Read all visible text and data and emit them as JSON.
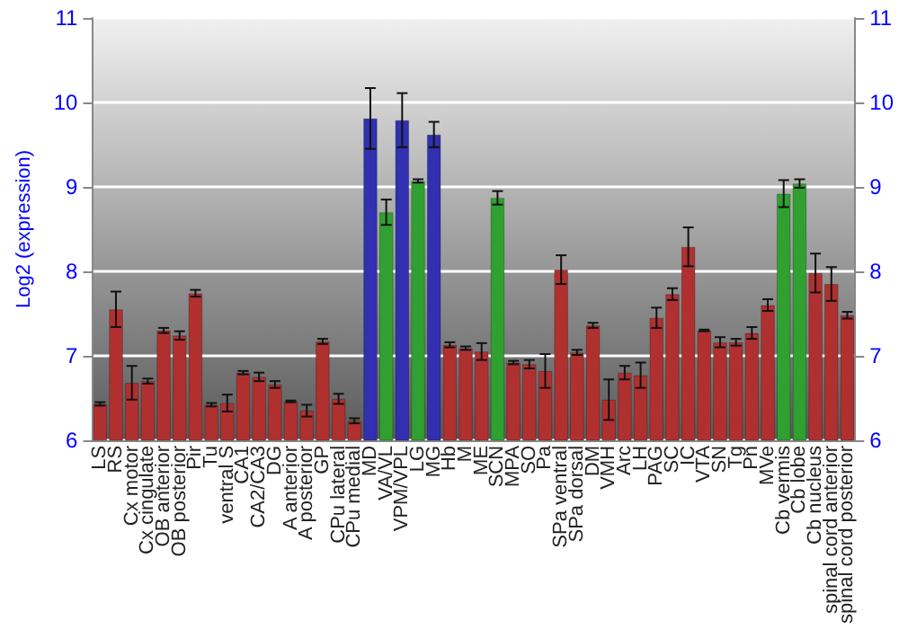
{
  "chart_data": {
    "type": "bar",
    "ylabel": "Log2 (expression)",
    "categories": [
      "LS",
      "RS",
      "Cx motor",
      "Cx cingulate",
      "OB anterior",
      "OB posterior",
      "Pir",
      "Tu",
      "ventral S",
      "CA1",
      "CA2/CA3",
      "DG",
      "A anterior",
      "A posterior",
      "GP",
      "CPu lateral",
      "CPu medial",
      "MD",
      "VA/VL",
      "VPM/VPL",
      "LG",
      "MG",
      "Hb",
      "M",
      "ME",
      "SCN",
      "MPA",
      "SO",
      "Pa",
      "SPa ventral",
      "SPa dorsal",
      "DM",
      "VMH",
      "Arc",
      "LH",
      "PAG",
      "SC",
      "IC",
      "VTA",
      "SN",
      "Tg",
      "Pn",
      "MVe",
      "Cb vermis",
      "Cb lobe",
      "Cb nucleus",
      "spinal cord anterior",
      "spinal cord posterior"
    ],
    "values": [
      6.43,
      7.55,
      6.68,
      6.7,
      7.3,
      7.24,
      7.74,
      6.42,
      6.44,
      6.8,
      6.75,
      6.66,
      6.46,
      6.35,
      7.17,
      6.49,
      6.23,
      9.81,
      8.7,
      9.79,
      9.07,
      9.62,
      7.13,
      7.09,
      7.05,
      8.87,
      6.92,
      6.9,
      6.82,
      8.02,
      7.04,
      7.36,
      6.48,
      6.8,
      6.77,
      7.45,
      7.73,
      8.29,
      7.3,
      7.16,
      7.16,
      7.27,
      7.6,
      8.92,
      9.04,
      7.98,
      7.85,
      7.48
    ],
    "errors": [
      0.02,
      0.21,
      0.2,
      0.03,
      0.03,
      0.05,
      0.04,
      0.02,
      0.1,
      0.02,
      0.05,
      0.04,
      0.01,
      0.07,
      0.03,
      0.06,
      0.03,
      0.36,
      0.15,
      0.32,
      0.02,
      0.15,
      0.03,
      0.02,
      0.1,
      0.08,
      0.02,
      0.05,
      0.2,
      0.17,
      0.03,
      0.03,
      0.24,
      0.08,
      0.15,
      0.12,
      0.07,
      0.23,
      0.01,
      0.06,
      0.04,
      0.07,
      0.07,
      0.16,
      0.05,
      0.23,
      0.2,
      0.04
    ],
    "colors": [
      "#b03030",
      "#b03030",
      "#b03030",
      "#b03030",
      "#b03030",
      "#b03030",
      "#b03030",
      "#b03030",
      "#b03030",
      "#b03030",
      "#b03030",
      "#b03030",
      "#b03030",
      "#b03030",
      "#b03030",
      "#b03030",
      "#b03030",
      "#3030b0",
      "#30a030",
      "#3030b0",
      "#30a030",
      "#3030b0",
      "#b03030",
      "#b03030",
      "#b03030",
      "#30a030",
      "#b03030",
      "#b03030",
      "#b03030",
      "#b03030",
      "#b03030",
      "#b03030",
      "#b03030",
      "#b03030",
      "#b03030",
      "#b03030",
      "#b03030",
      "#b03030",
      "#b03030",
      "#b03030",
      "#b03030",
      "#b03030",
      "#b03030",
      "#30a030",
      "#30a030",
      "#b03030",
      "#b03030",
      "#b03030"
    ],
    "ylim": [
      6,
      11
    ],
    "yticks": [
      6,
      7,
      8,
      9,
      10,
      11
    ],
    "y2lim": [
      6,
      11
    ],
    "y2ticks": [
      6,
      7,
      8,
      9,
      10,
      11
    ],
    "grid": "y"
  }
}
